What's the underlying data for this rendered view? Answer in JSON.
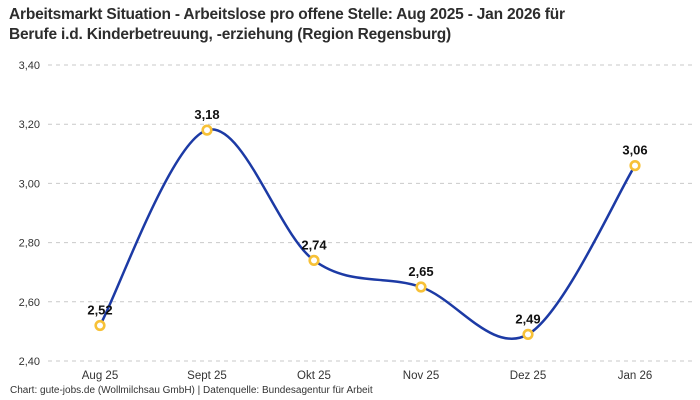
{
  "header": {
    "title_line1": "Arbeitsmarkt Situation - Arbeitslose pro offene Stelle: Aug 2025 - Jan 2026 für",
    "title_line2": "Berufe i.d. Kinderbetreuung, -erziehung (Region Regensburg)"
  },
  "footer": {
    "credit": "Chart: gute-jobs.de (Wollmilchsau GmbH) | Datenquelle: Bundesagentur für Arbeit"
  },
  "chart_data": {
    "type": "line",
    "title": "Arbeitsmarkt Situation - Arbeitslose pro offene Stelle: Aug 2025 - Jan 2026 für Berufe i.d. Kinderbetreuung, -erziehung (Region Regensburg)",
    "categories": [
      "Aug 25",
      "Sept 25",
      "Okt 25",
      "Nov 25",
      "Dez 25",
      "Jan 26"
    ],
    "values": [
      2.52,
      3.18,
      2.74,
      2.65,
      2.49,
      3.06
    ],
    "value_labels": [
      "2,52",
      "3,18",
      "2,74",
      "2,65",
      "2,49",
      "3,06"
    ],
    "ylim": [
      2.4,
      3.4
    ],
    "yticks": [
      2.4,
      2.6,
      2.8,
      3.0,
      3.2,
      3.4
    ],
    "ytick_labels": [
      "2,40",
      "2,60",
      "2,80",
      "3,00",
      "3,20",
      "3,40"
    ],
    "xlabel": "",
    "ylabel": "",
    "grid": "horizontal-dashed",
    "legend": "none",
    "smooth": true,
    "colors": {
      "line": "#1c3aa5",
      "marker_ring": "#f7c137",
      "marker_fill": "#ffffff",
      "gridline": "#c9c9c9",
      "axis_text": "#333333",
      "point_label_text": "#111111",
      "title_text": "#2d2d2d"
    }
  }
}
